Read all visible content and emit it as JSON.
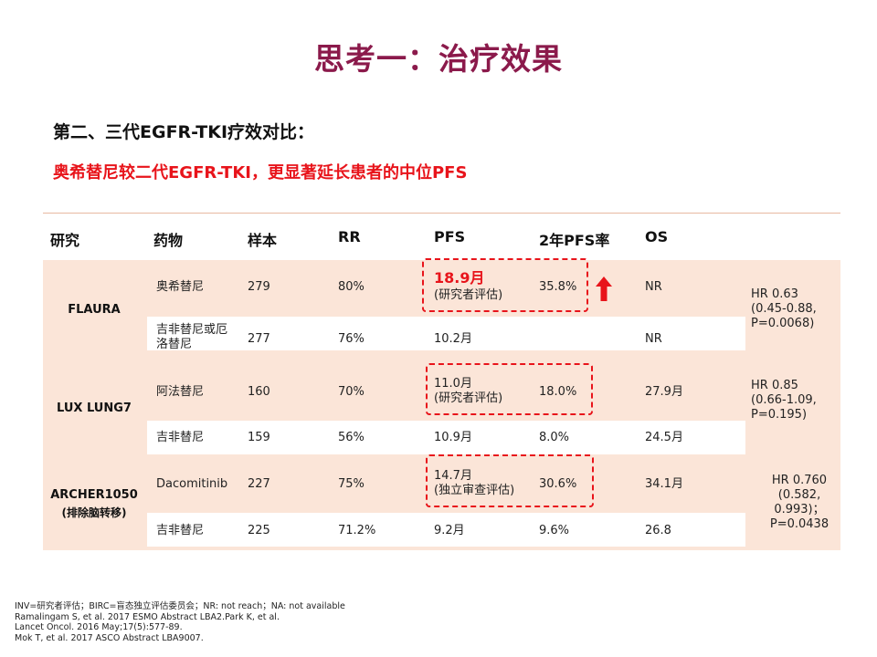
{
  "title": "思考一：治疗效果",
  "subtitle": "第二、三代EGFR-TKI疗效对比：",
  "highlight": "奥希替尼较二代EGFR-TKI，更显著延长患者的中位PFS",
  "table": {
    "headers": [
      "研究",
      "药物",
      "样本",
      "RR",
      "PFS",
      "2年PFS率",
      "OS"
    ],
    "groups": [
      {
        "study": "FLAURA",
        "study_sub": "",
        "hr": "HR 0.63 (0.45-0.88, P=0.0068)",
        "rows": [
          {
            "drug": "奥希替尼",
            "n": "279",
            "rr": "80%",
            "pfs": "18.9月",
            "pfs_note": "(研究者评估)",
            "pfs2": "35.8%",
            "os": "NR"
          },
          {
            "drug": "吉非替尼或厄洛替尼",
            "n": "277",
            "rr": "76%",
            "pfs": "10.2月",
            "pfs_note": "",
            "pfs2": "",
            "os": "NR"
          }
        ]
      },
      {
        "study": "LUX LUNG7",
        "study_sub": "",
        "hr": "HR 0.85 (0.66-1.09, P=0.195)",
        "rows": [
          {
            "drug": "阿法替尼",
            "n": "160",
            "rr": "70%",
            "pfs": "11.0月",
            "pfs_note": "(研究者评估)",
            "pfs2": "18.0%",
            "os": "27.9月"
          },
          {
            "drug": "吉非替尼",
            "n": "159",
            "rr": "56%",
            "pfs": "10.9月",
            "pfs_note": "",
            "pfs2": "8.0%",
            "os": "24.5月"
          }
        ]
      },
      {
        "study": "ARCHER1050",
        "study_sub": "(排除脑转移)",
        "hr": "HR 0.760 (0.582, 0.993)； P=0.0438",
        "rows": [
          {
            "drug": "Dacomitinib",
            "n": "227",
            "rr": "75%",
            "pfs": "14.7月",
            "pfs_note": "(独立审查评估)",
            "pfs2": "30.6%",
            "os": "34.1月"
          },
          {
            "drug": "吉非替尼",
            "n": "225",
            "rr": "71.2%",
            "pfs": "9.2月",
            "pfs_note": "",
            "pfs2": "9.6%",
            "os": "26.8"
          }
        ]
      }
    ]
  },
  "footnotes": [
    "INV=研究者评估；BIRC=盲态独立评估委员会；NR: not reach；NA: not available",
    "Ramalingam S, et al. 2017 ESMO Abstract LBA2.Park K, et al.",
    "Lancet Oncol. 2016 May;17(5):577-89.",
    "Mok T, et al. 2017 ASCO Abstract LBA9007."
  ],
  "colors": {
    "title": "#8B1A4B",
    "highlight": "#E8141B",
    "band": "#FBE5D8",
    "border": "#E8B9A1"
  },
  "icons": {
    "increase": "up-arrow-icon"
  }
}
